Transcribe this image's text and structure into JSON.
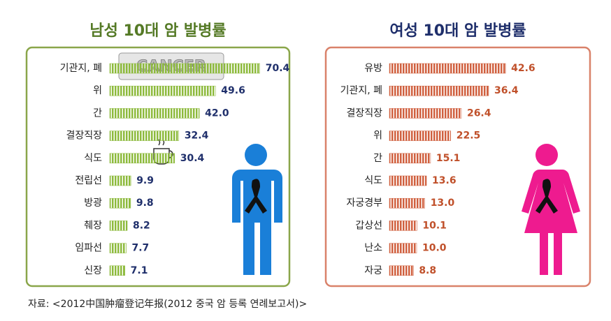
{
  "chart_data": [
    {
      "type": "bar",
      "title": "남성 10대 암 발병률",
      "color": "#8dba3c",
      "categories": [
        "기관지, 폐",
        "위",
        "간",
        "결장직장",
        "식도",
        "전립선",
        "방광",
        "췌장",
        "임파선",
        "신장"
      ],
      "values": [
        70.4,
        49.6,
        42.0,
        32.4,
        30.4,
        9.9,
        9.8,
        8.2,
        7.7,
        7.1
      ],
      "value_labels": [
        "70.4",
        "49.6",
        "42.0",
        "32.4",
        "30.4",
        "9.9",
        "9.8",
        "8.2",
        "7.7",
        "7.1"
      ]
    },
    {
      "type": "bar",
      "title": "여성 10대 암 발병률",
      "color": "#d0603f",
      "categories": [
        "유방",
        "기관지, 폐",
        "결장직장",
        "위",
        "간",
        "식도",
        "자궁경부",
        "갑상선",
        "난소",
        "자궁"
      ],
      "values": [
        42.6,
        36.4,
        26.4,
        22.5,
        15.1,
        13.6,
        13.0,
        10.1,
        10.0,
        8.8
      ],
      "value_labels": [
        "42.6",
        "36.4",
        "26.4",
        "22.5",
        "15.1",
        "13.6",
        "13.0",
        "10.1",
        "10.0",
        "8.8"
      ]
    }
  ],
  "source": "자료: <2012中国肿瘤登记年报(2012 중국 암 등록 연례보고서)>"
}
